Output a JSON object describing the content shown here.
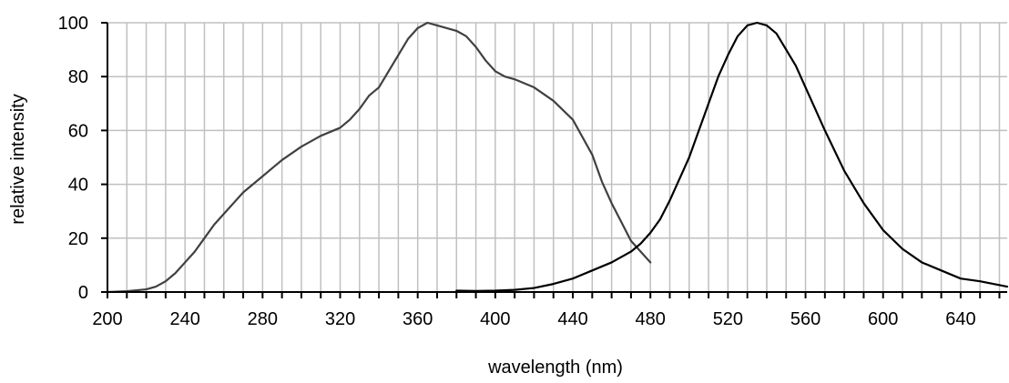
{
  "chart_data": {
    "type": "line",
    "xlabel": "wavelength (nm)",
    "ylabel": "relative intensity",
    "xlim": [
      200,
      664
    ],
    "ylim": [
      0,
      100
    ],
    "x_ticks": [
      200,
      240,
      280,
      320,
      360,
      400,
      440,
      480,
      520,
      560,
      600,
      640
    ],
    "y_ticks": [
      0,
      20,
      40,
      60,
      80,
      100
    ],
    "grid": true,
    "legend": "none",
    "series": [
      {
        "color": "#404040",
        "x": [
          200,
          210,
          220,
          225,
          230,
          235,
          240,
          245,
          250,
          255,
          260,
          265,
          270,
          275,
          280,
          285,
          290,
          300,
          310,
          320,
          325,
          330,
          335,
          340,
          345,
          350,
          355,
          360,
          365,
          370,
          375,
          380,
          385,
          390,
          395,
          400,
          405,
          410,
          420,
          430,
          440,
          450,
          455,
          460,
          465,
          470,
          475,
          480
        ],
        "y": [
          0,
          0.3,
          1,
          2,
          4,
          7,
          11,
          15,
          20,
          25,
          29,
          33,
          37,
          40,
          43,
          46,
          49,
          54,
          58,
          61,
          64,
          68,
          73,
          76,
          82,
          88,
          94,
          98,
          100,
          99,
          98,
          97,
          95,
          91,
          86,
          82,
          80,
          79,
          76,
          71,
          64,
          51,
          41,
          33,
          26,
          19,
          15,
          11
        ]
      },
      {
        "color": "#000000",
        "x": [
          380,
          390,
          400,
          410,
          420,
          430,
          440,
          450,
          460,
          470,
          475,
          480,
          485,
          490,
          495,
          500,
          505,
          510,
          515,
          520,
          525,
          530,
          535,
          540,
          545,
          550,
          555,
          560,
          570,
          580,
          590,
          600,
          610,
          620,
          630,
          640,
          650,
          664
        ],
        "y": [
          0.5,
          0.4,
          0.5,
          0.8,
          1.5,
          3,
          5,
          8,
          11,
          15,
          18,
          22,
          27,
          34,
          42,
          50,
          60,
          70,
          80,
          88,
          95,
          99,
          100,
          99,
          96,
          90,
          84,
          76,
          60,
          45,
          33,
          23,
          16,
          11,
          8,
          5,
          4,
          2
        ]
      }
    ]
  }
}
